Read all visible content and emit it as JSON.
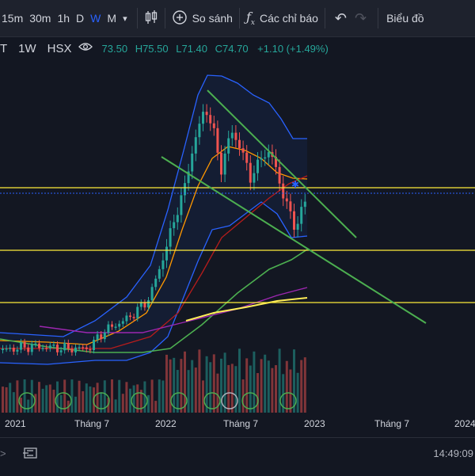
{
  "toolbar": {
    "timeframes": [
      "15m",
      "30m",
      "1h",
      "D",
      "W",
      "M"
    ],
    "active_timeframe": "W",
    "compare_label": "So sánh",
    "indicators_label": "Các chỉ báo",
    "chart_type_label": "Biểu đồ"
  },
  "legend": {
    "symbol_fragment": "T",
    "interval": "1W",
    "exchange": "HSX",
    "open_fragment": "73.50",
    "high": "H75.50",
    "low": "L71.40",
    "close": "C74.70",
    "change": "+1.10 (+1.49%)"
  },
  "xaxis": {
    "labels": [
      "2021",
      "Tháng 7",
      "2022",
      "Tháng 7",
      "2023",
      "Tháng 7",
      "2024"
    ]
  },
  "bottom": {
    "clock": "14:49:09"
  },
  "colors": {
    "background": "#131722",
    "up": "#26a69a",
    "down": "#ef5350",
    "trendline": "#4caf50",
    "support": "#ffeb3b",
    "bollinger": "#2962ff"
  },
  "chart_data": {
    "type": "line",
    "symbol": "",
    "interval": "1W",
    "x_range": [
      "2020-11",
      "2024-01"
    ],
    "x_ticks": [
      "2021",
      "Tháng 7",
      "2022",
      "Tháng 7",
      "2023",
      "Tháng 7",
      "2024"
    ],
    "ohlc_last": {
      "open": 73.5,
      "high": 75.5,
      "low": 71.4,
      "close": 74.7,
      "change": 1.1,
      "change_pct": 1.49
    },
    "grid": false,
    "legend": "top-left"
  }
}
